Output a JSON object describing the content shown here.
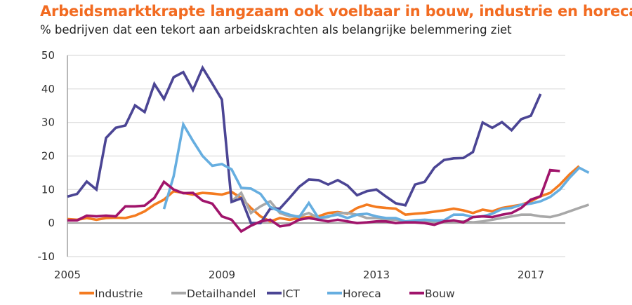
{
  "title": "Arbeidsmarktkrapte langzaam ook voelbaar in bouw, industrie en horeca",
  "subtitle": "% bedrijven dat een tekort aan arbeidskrachten als belangrijke belemmering ziet",
  "chart_data": {
    "type": "line",
    "title": "Arbeidsmarktkrapte langzaam ook voelbaar in bouw, industrie en horeca",
    "subtitle": "% bedrijven dat een tekort aan arbeidskrachten als belangrijke belemmering ziet",
    "xlabel": "",
    "ylabel": "",
    "x_start": "2005Q1",
    "x_frequency": "quarterly",
    "x_tick_labels": [
      "2005",
      "2009",
      "2013",
      "2017"
    ],
    "x_tick_years": [
      2005,
      2009,
      2013,
      2017
    ],
    "y_ticks": [
      -10,
      0,
      10,
      20,
      30,
      40,
      50
    ],
    "ylim": [
      -10,
      50
    ],
    "grid": true,
    "legend_position": "bottom",
    "series": [
      {
        "name": "Industrie",
        "color": "#f47b20",
        "start_index": 0,
        "values": [
          1.2,
          1.0,
          1.5,
          1.0,
          1.5,
          1.6,
          1.5,
          2.2,
          3.5,
          5.5,
          7.0,
          9.5,
          9.0,
          8.5,
          9.0,
          8.8,
          8.5,
          9.3,
          7.5,
          4.5,
          2.0,
          0.5,
          1.5,
          1.0,
          1.5,
          1.8,
          2.0,
          3.0,
          3.3,
          2.8,
          4.5,
          5.5,
          4.8,
          4.5,
          4.3,
          2.5,
          2.8,
          3.0,
          3.4,
          3.8,
          4.3,
          3.8,
          3.0,
          4.0,
          3.5,
          4.5,
          5.0,
          5.5,
          6.5,
          8.0,
          9.0,
          11.5,
          14.5,
          17.0
        ]
      },
      {
        "name": "Detailhandel",
        "color": "#a8a8a8",
        "start_index": 17,
        "values": [
          6.5,
          9.0,
          3.0,
          5.0,
          6.5,
          3.0,
          2.0,
          2.0,
          3.0,
          1.5,
          1.8,
          3.0,
          3.0,
          2.5,
          1.5,
          1.5,
          1.0,
          1.0,
          0.5,
          0.5,
          0.5,
          0.5,
          0.5,
          0.5,
          0.5,
          0.2,
          0.5,
          1.0,
          1.5,
          2.0,
          2.5,
          2.5,
          2.0,
          1.8,
          2.5,
          3.5,
          4.5,
          5.5
        ]
      },
      {
        "name": "ICT",
        "color": "#4b4594",
        "start_index": 0,
        "values": [
          7.9,
          8.7,
          12.4,
          10.0,
          25.4,
          28.4,
          29.1,
          35.1,
          33.1,
          41.5,
          37.0,
          43.5,
          45.0,
          39.7,
          46.3,
          41.6,
          36.8,
          6.3,
          7.4,
          0.0,
          0.0,
          4.3,
          4.3,
          7.5,
          10.8,
          13.0,
          12.8,
          11.5,
          12.8,
          11.2,
          8.3,
          9.5,
          10.0,
          7.9,
          5.9,
          5.3,
          11.5,
          12.3,
          16.5,
          18.8,
          19.3,
          19.4,
          21.2,
          30.0,
          28.4,
          30.1,
          27.7,
          31.0,
          32.0,
          38.5
        ]
      },
      {
        "name": "Horeca",
        "color": "#66aee0",
        "start_index": 10,
        "values": [
          4.2,
          14.0,
          29.4,
          24.5,
          20.0,
          17.1,
          17.6,
          16.0,
          10.5,
          10.3,
          8.7,
          4.8,
          3.5,
          2.5,
          1.8,
          6.0,
          1.5,
          2.0,
          2.5,
          1.5,
          2.5,
          2.8,
          2.0,
          1.5,
          1.5,
          0.5,
          0.8,
          1.0,
          0.8,
          0.8,
          2.5,
          2.5,
          1.8,
          2.0,
          2.8,
          4.2,
          4.5,
          5.5,
          5.8,
          6.5,
          7.8,
          10.0,
          13.5,
          16.5,
          15.0
        ]
      },
      {
        "name": "Bouw",
        "color": "#a0146b",
        "start_index": 0,
        "values": [
          0.8,
          0.8,
          2.2,
          2.0,
          2.2,
          2.0,
          5.0,
          5.0,
          5.2,
          7.5,
          12.3,
          10.0,
          8.9,
          9.0,
          6.7,
          5.8,
          2.0,
          1.0,
          -2.5,
          -0.8,
          0.5,
          1.0,
          -1.0,
          -0.5,
          1.0,
          1.5,
          1.0,
          0.5,
          1.0,
          0.5,
          0.0,
          0.2,
          0.5,
          0.5,
          0.0,
          0.2,
          0.2,
          0.0,
          -0.5,
          0.5,
          0.8,
          0.2,
          1.8,
          2.0,
          1.8,
          2.5,
          3.0,
          4.5,
          7.0,
          8.0,
          15.8,
          15.5
        ]
      }
    ]
  },
  "legend": {
    "items": [
      {
        "label": "Industrie",
        "color": "#f47b20"
      },
      {
        "label": "Detailhandel",
        "color": "#a8a8a8"
      },
      {
        "label": "ICT",
        "color": "#4b4594"
      },
      {
        "label": "Horeca",
        "color": "#66aee0"
      },
      {
        "label": "Bouw",
        "color": "#a0146b"
      }
    ]
  }
}
